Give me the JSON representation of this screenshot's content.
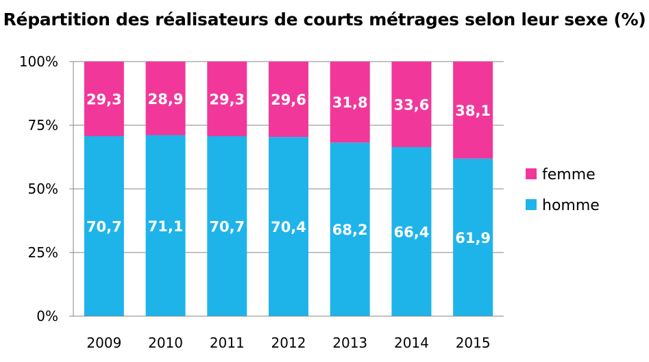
{
  "chart_data": {
    "type": "bar",
    "stacked": true,
    "title": "Répartition des réalisateurs de courts métrages selon leur sexe (%)",
    "categories": [
      "2009",
      "2010",
      "2011",
      "2012",
      "2013",
      "2014",
      "2015"
    ],
    "series": [
      {
        "name": "homme",
        "color": "#1eb4ea",
        "values": [
          70.7,
          71.1,
          70.7,
          70.4,
          68.2,
          66.4,
          61.9
        ],
        "labels": [
          "70,7",
          "71,1",
          "70,7",
          "70,4",
          "68,2",
          "66,4",
          "61,9"
        ]
      },
      {
        "name": "femme",
        "color": "#f1389a",
        "values": [
          29.3,
          28.9,
          29.3,
          29.6,
          31.8,
          33.6,
          38.1
        ],
        "labels": [
          "29,3",
          "28,9",
          "29,3",
          "29,6",
          "31,8",
          "33,6",
          "38,1"
        ]
      }
    ],
    "ylim": [
      0,
      100
    ],
    "yticks": [
      0,
      25,
      50,
      75,
      100
    ],
    "ytick_labels": [
      "0%",
      "25%",
      "50%",
      "75%",
      "100%"
    ],
    "grid": true,
    "legend": {
      "position": "right",
      "order": [
        "femme",
        "homme"
      ]
    }
  }
}
